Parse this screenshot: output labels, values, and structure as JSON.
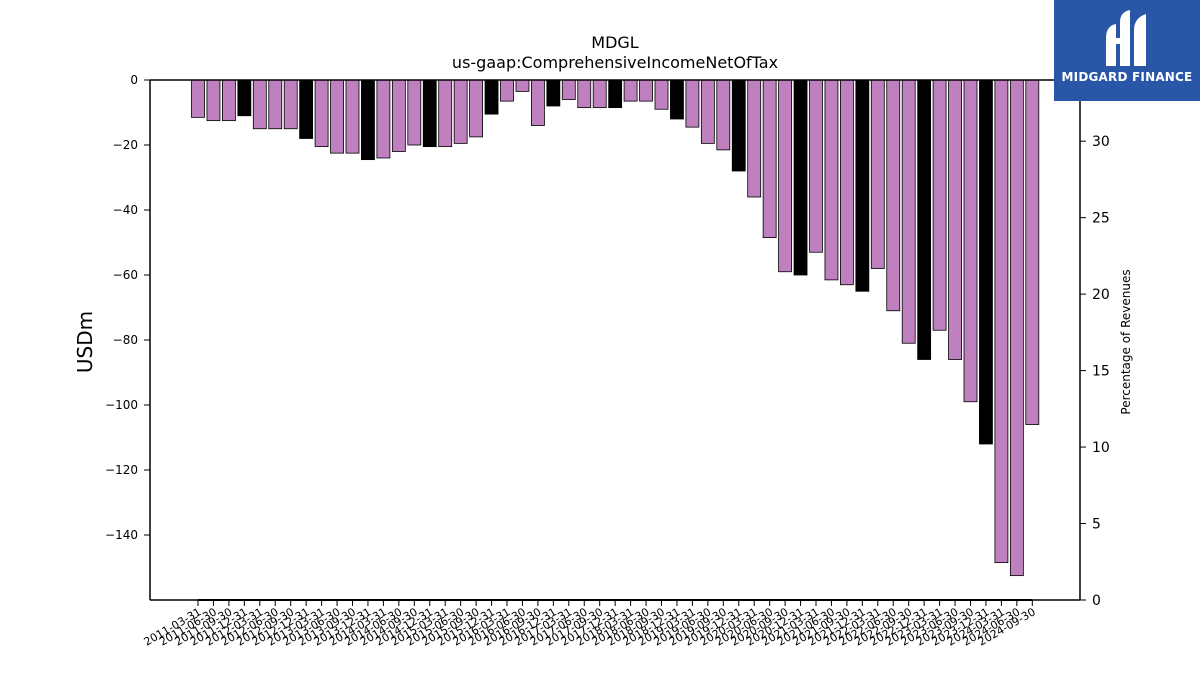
{
  "logo": {
    "text": "MIDGARD FINANCE",
    "background": "#2a56a8"
  },
  "chart_data": {
    "type": "bar",
    "title": "MDGL",
    "subtitle": "us-gaap:ComprehensiveIncomeNetOfTax",
    "ylabel": "USDm",
    "y2label": "Percentage of Revenues",
    "ylim": [
      -160,
      0
    ],
    "y2lim": [
      0,
      34
    ],
    "yticks": [
      0,
      -20,
      -40,
      -60,
      -80,
      -100,
      -120,
      -140
    ],
    "y2ticks": [
      0,
      5,
      10,
      15,
      20,
      25,
      30
    ],
    "grid": false,
    "colors": {
      "quarter": "#bf80bf",
      "annual": "#000000"
    },
    "categories": [
      "2011-03-31",
      "2011-06-30",
      "2011-09-30",
      "2011-12-31",
      "2012-03-31",
      "2012-06-30",
      "2012-09-30",
      "2012-12-31",
      "2013-03-31",
      "2013-06-30",
      "2013-09-30",
      "2013-12-31",
      "2014-03-31",
      "2014-06-30",
      "2014-09-30",
      "2014-12-31",
      "2015-03-31",
      "2015-06-30",
      "2015-09-30",
      "2015-12-31",
      "2016-03-31",
      "2016-06-30",
      "2016-09-30",
      "2016-12-31",
      "2017-03-31",
      "2017-06-30",
      "2017-09-30",
      "2017-12-31",
      "2018-03-31",
      "2018-06-30",
      "2018-09-30",
      "2018-12-31",
      "2019-03-31",
      "2019-06-30",
      "2019-09-30",
      "2019-12-31",
      "2020-03-31",
      "2020-06-30",
      "2020-09-30",
      "2020-12-31",
      "2021-03-31",
      "2021-06-30",
      "2021-09-30",
      "2021-12-31",
      "2022-03-31",
      "2022-06-30",
      "2022-09-30",
      "2022-12-31",
      "2023-03-31",
      "2023-06-30",
      "2023-09-30",
      "2023-12-31",
      "2024-03-31",
      "2024-06-30",
      "2024-09-30"
    ],
    "values": [
      -11.5,
      -12.5,
      -12.5,
      -11,
      -15,
      -15,
      -15,
      -18,
      -20.5,
      -22.5,
      -22.5,
      -24.5,
      -24,
      -22,
      -20,
      -20.5,
      -20.5,
      -19.5,
      -17.5,
      -10.5,
      -6.5,
      -3.5,
      -14,
      -8,
      -6,
      -8.5,
      -8.5,
      -8.5,
      -6.5,
      -6.5,
      -9,
      -12,
      -14.5,
      -19.5,
      -21.5,
      -28,
      -36,
      -48.5,
      -59,
      -60,
      -53,
      -61.5,
      -63,
      -65,
      -58,
      -71,
      -81,
      -86,
      -77,
      -86,
      -99,
      -112,
      -148.5,
      -152.5,
      -106
    ],
    "annual": [
      false,
      false,
      false,
      true,
      false,
      false,
      false,
      true,
      false,
      false,
      false,
      true,
      false,
      false,
      false,
      true,
      false,
      false,
      false,
      true,
      false,
      false,
      false,
      true,
      false,
      false,
      false,
      true,
      false,
      false,
      false,
      true,
      false,
      false,
      false,
      true,
      false,
      false,
      false,
      true,
      false,
      false,
      false,
      true,
      false,
      false,
      false,
      true,
      false,
      false,
      false,
      true,
      false,
      false,
      false
    ]
  }
}
